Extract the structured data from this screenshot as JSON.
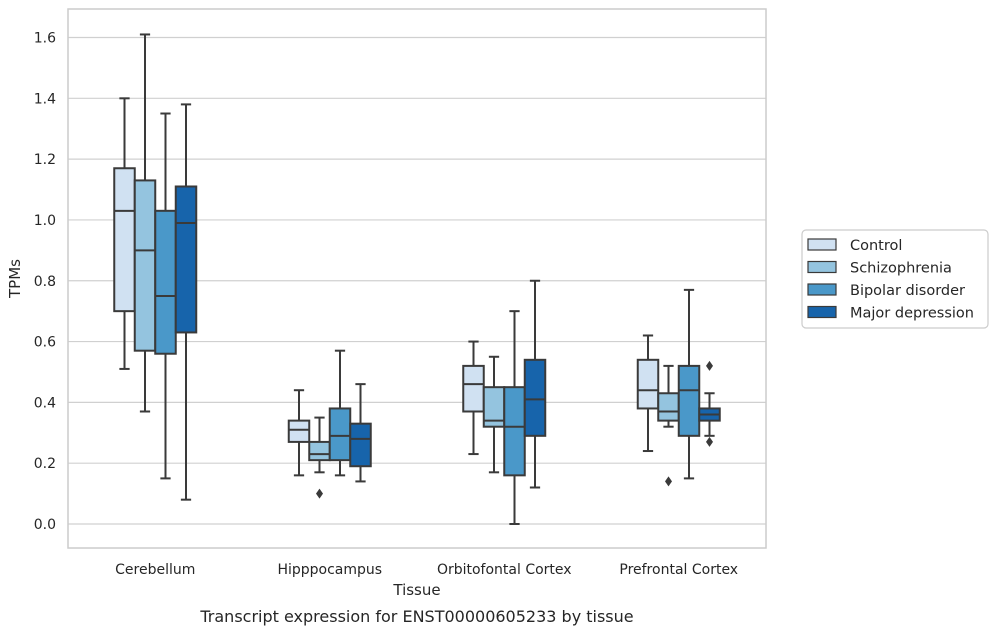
{
  "chart_data": {
    "type": "box",
    "title": "",
    "caption": "Transcript expression for ENST00000605233 by tissue",
    "xlabel": "Tissue",
    "ylabel": "TPMs",
    "ylim": [
      -0.08,
      1.69
    ],
    "yticks": [
      "0.0",
      "0.2",
      "0.4",
      "0.6",
      "0.8",
      "1.0",
      "1.2",
      "1.4",
      "1.6"
    ],
    "grid": true,
    "legend_position": "right",
    "categories": [
      "Cerebellum",
      "Hipppocampus",
      "Orbitofontal Cortex",
      "Prefrontal Cortex"
    ],
    "series": [
      {
        "name": "Control",
        "color": "#d0e1f2",
        "boxes": [
          {
            "whislo": 0.51,
            "q1": 0.7,
            "med": 1.03,
            "q3": 1.17,
            "whishi": 1.4,
            "fliers": []
          },
          {
            "whislo": 0.16,
            "q1": 0.27,
            "med": 0.31,
            "q3": 0.34,
            "whishi": 0.44,
            "fliers": []
          },
          {
            "whislo": 0.23,
            "q1": 0.37,
            "med": 0.46,
            "q3": 0.52,
            "whishi": 0.6,
            "fliers": []
          },
          {
            "whislo": 0.24,
            "q1": 0.38,
            "med": 0.44,
            "q3": 0.54,
            "whishi": 0.62,
            "fliers": []
          }
        ]
      },
      {
        "name": "Schizophrenia",
        "color": "#94c4df",
        "boxes": [
          {
            "whislo": 0.37,
            "q1": 0.57,
            "med": 0.9,
            "q3": 1.13,
            "whishi": 1.61,
            "fliers": []
          },
          {
            "whislo": 0.17,
            "q1": 0.21,
            "med": 0.23,
            "q3": 0.27,
            "whishi": 0.35,
            "fliers": [
              0.1
            ]
          },
          {
            "whislo": 0.17,
            "q1": 0.32,
            "med": 0.34,
            "q3": 0.45,
            "whishi": 0.55,
            "fliers": []
          },
          {
            "whislo": 0.32,
            "q1": 0.34,
            "med": 0.37,
            "q3": 0.43,
            "whishi": 0.52,
            "fliers": [
              0.14
            ]
          }
        ]
      },
      {
        "name": "Bipolar disorder",
        "color": "#4a98c9",
        "boxes": [
          {
            "whislo": 0.15,
            "q1": 0.56,
            "med": 0.75,
            "q3": 1.03,
            "whishi": 1.35,
            "fliers": []
          },
          {
            "whislo": 0.16,
            "q1": 0.21,
            "med": 0.29,
            "q3": 0.38,
            "whishi": 0.57,
            "fliers": []
          },
          {
            "whislo": 0.0,
            "q1": 0.16,
            "med": 0.32,
            "q3": 0.45,
            "whishi": 0.7,
            "fliers": []
          },
          {
            "whislo": 0.15,
            "q1": 0.29,
            "med": 0.44,
            "q3": 0.52,
            "whishi": 0.77,
            "fliers": []
          }
        ]
      },
      {
        "name": "Major depression",
        "color": "#1764ab",
        "boxes": [
          {
            "whislo": 0.08,
            "q1": 0.63,
            "med": 0.99,
            "q3": 1.11,
            "whishi": 1.38,
            "fliers": []
          },
          {
            "whislo": 0.14,
            "q1": 0.19,
            "med": 0.28,
            "q3": 0.33,
            "whishi": 0.46,
            "fliers": []
          },
          {
            "whislo": 0.12,
            "q1": 0.29,
            "med": 0.41,
            "q3": 0.54,
            "whishi": 0.8,
            "fliers": []
          },
          {
            "whislo": 0.29,
            "q1": 0.34,
            "med": 0.36,
            "q3": 0.38,
            "whishi": 0.43,
            "fliers": [
              0.52,
              0.27
            ]
          }
        ]
      }
    ]
  }
}
